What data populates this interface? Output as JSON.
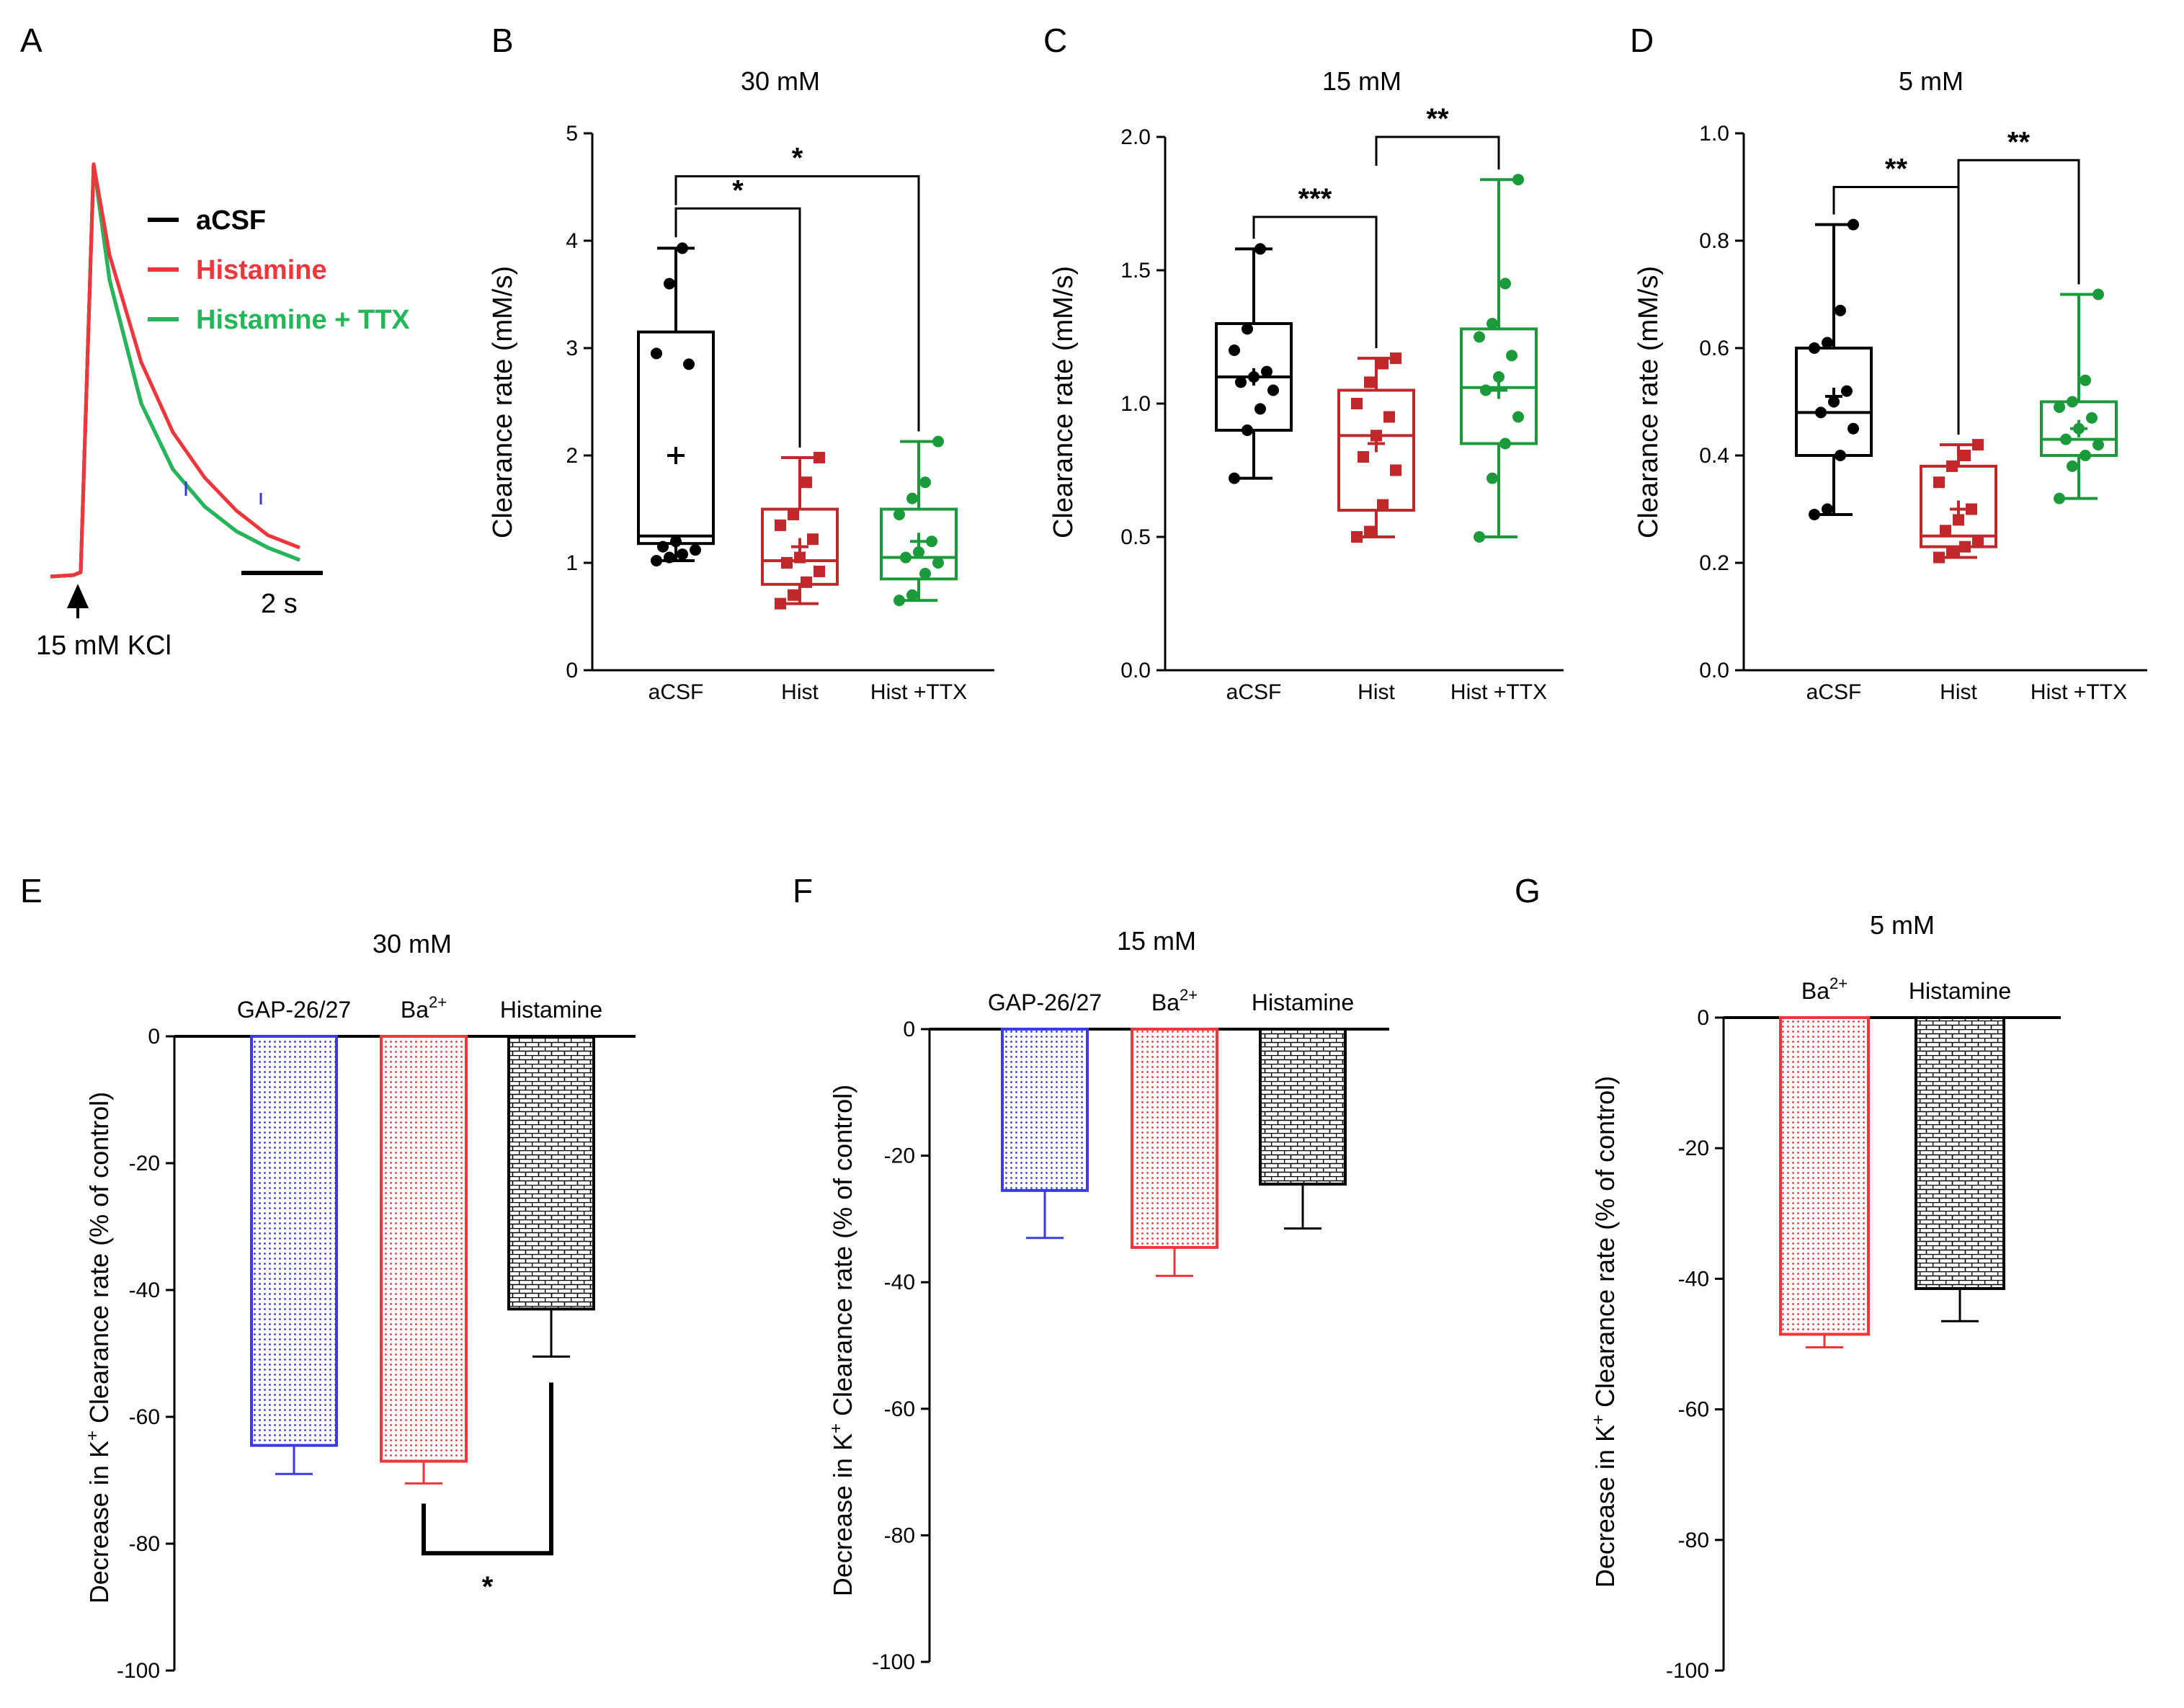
{
  "colors": {
    "black": "#000000",
    "red": "#c0282c",
    "green": "#1a9a3a",
    "blue": "#3a3ae8",
    "bright_red": "#f0363a",
    "bright_green": "#22b85a",
    "trace_blue": "#3a3ad0"
  },
  "chart_data": [
    {
      "panel": "A",
      "type": "line",
      "legend": [
        {
          "name": "aCSF",
          "color": "#000000"
        },
        {
          "name": "Histamine",
          "color": "#f0363a"
        },
        {
          "name": "Histamine + TTX",
          "color": "#22b85a"
        }
      ],
      "stimulus_label": "15 mM KCl",
      "scale_bar_label": "2 s",
      "series": [
        {
          "name": "aCSF",
          "t": [
            0,
            0.5,
            1,
            2,
            3,
            4,
            5,
            6,
            7
          ],
          "v": [
            0,
            1.0,
            0.72,
            0.42,
            0.26,
            0.17,
            0.11,
            0.07,
            0.04
          ]
        },
        {
          "name": "Histamine",
          "t": [
            0,
            0.5,
            1,
            2,
            3,
            4,
            5,
            6,
            7
          ],
          "v": [
            0,
            1.0,
            0.78,
            0.52,
            0.35,
            0.24,
            0.16,
            0.1,
            0.07
          ]
        },
        {
          "name": "Histamine + TTX",
          "t": [
            0,
            0.5,
            1,
            2,
            3,
            4,
            5,
            6,
            7
          ],
          "v": [
            0,
            1.0,
            0.72,
            0.42,
            0.26,
            0.17,
            0.11,
            0.07,
            0.04
          ]
        }
      ]
    },
    {
      "panel": "B",
      "type": "box",
      "title": "30 mM",
      "ylabel": "Clearance rate (mM/s)",
      "ylim": [
        0,
        5
      ],
      "yticks": [
        "0",
        "1",
        "2",
        "3",
        "4",
        "5"
      ],
      "categories": [
        "aCSF",
        "Hist",
        "Hist +TTX"
      ],
      "groups": [
        {
          "name": "aCSF",
          "min": 1.02,
          "q1": 1.18,
          "median": 1.25,
          "q3": 3.15,
          "max": 3.93,
          "mean": 2.0,
          "points": [
            1.02,
            1.05,
            1.08,
            1.12,
            1.15,
            1.2,
            2.85,
            2.95,
            3.6,
            3.93
          ]
        },
        {
          "name": "Hist",
          "min": 0.62,
          "q1": 0.8,
          "median": 1.02,
          "q3": 1.5,
          "max": 1.98,
          "mean": 1.15,
          "points": [
            0.62,
            0.7,
            0.82,
            0.92,
            1.0,
            1.05,
            1.22,
            1.35,
            1.45,
            1.75,
            1.98
          ]
        },
        {
          "name": "Hist +TTX",
          "min": 0.65,
          "q1": 0.85,
          "median": 1.05,
          "q3": 1.5,
          "max": 2.13,
          "mean": 1.2,
          "points": [
            0.65,
            0.7,
            0.9,
            1.0,
            1.05,
            1.1,
            1.2,
            1.45,
            1.6,
            1.75,
            2.13
          ]
        }
      ],
      "brackets": [
        {
          "from": 0,
          "to": 1,
          "level": 4.3,
          "label": "*"
        },
        {
          "from": 0,
          "to": 2,
          "level": 4.6,
          "label": "*"
        }
      ]
    },
    {
      "panel": "C",
      "type": "box",
      "title": "15 mM",
      "ylabel": "Clearance rate (mM/s)",
      "ylim": [
        0,
        2.0
      ],
      "yticks": [
        "0.0",
        "0.5",
        "1.0",
        "1.5",
        "2.0"
      ],
      "categories": [
        "aCSF",
        "Hist",
        "Hist +TTX"
      ],
      "groups": [
        {
          "name": "aCSF",
          "min": 0.72,
          "q1": 0.9,
          "median": 1.1,
          "q3": 1.3,
          "max": 1.58,
          "mean": 1.1,
          "points": [
            0.72,
            0.9,
            0.98,
            1.05,
            1.08,
            1.1,
            1.12,
            1.2,
            1.28,
            1.58
          ]
        },
        {
          "name": "Hist",
          "min": 0.5,
          "q1": 0.6,
          "median": 0.88,
          "q3": 1.05,
          "max": 1.17,
          "mean": 0.85,
          "points": [
            0.5,
            0.52,
            0.62,
            0.75,
            0.8,
            0.88,
            0.95,
            1.0,
            1.08,
            1.15,
            1.17
          ]
        },
        {
          "name": "Hist +TTX",
          "min": 0.5,
          "q1": 0.85,
          "median": 1.06,
          "q3": 1.28,
          "max": 1.84,
          "mean": 1.05,
          "points": [
            0.5,
            0.72,
            0.85,
            0.95,
            1.05,
            1.1,
            1.18,
            1.25,
            1.3,
            1.45,
            1.84
          ]
        }
      ],
      "brackets": [
        {
          "from": 0,
          "to": 1,
          "level": 1.7,
          "label": "***"
        },
        {
          "from": 1,
          "to": 2,
          "level": 2.0,
          "label": "**"
        }
      ]
    },
    {
      "panel": "D",
      "type": "box",
      "title": "5 mM",
      "ylabel": "Clearance rate (mM/s)",
      "ylim": [
        0,
        1.0
      ],
      "yticks": [
        "0.0",
        "0.2",
        "0.4",
        "0.6",
        "0.8",
        "1.0"
      ],
      "categories": [
        "aCSF",
        "Hist",
        "Hist +TTX"
      ],
      "groups": [
        {
          "name": "aCSF",
          "min": 0.29,
          "q1": 0.4,
          "median": 0.48,
          "q3": 0.6,
          "max": 0.83,
          "mean": 0.51,
          "points": [
            0.29,
            0.3,
            0.4,
            0.45,
            0.48,
            0.5,
            0.52,
            0.6,
            0.61,
            0.67,
            0.83
          ]
        },
        {
          "name": "Hist",
          "min": 0.21,
          "q1": 0.23,
          "median": 0.25,
          "q3": 0.38,
          "max": 0.42,
          "mean": 0.3,
          "points": [
            0.21,
            0.22,
            0.23,
            0.24,
            0.26,
            0.28,
            0.3,
            0.35,
            0.38,
            0.4,
            0.42
          ]
        },
        {
          "name": "Hist +TTX",
          "min": 0.32,
          "q1": 0.4,
          "median": 0.43,
          "q3": 0.5,
          "max": 0.7,
          "mean": 0.45,
          "points": [
            0.32,
            0.38,
            0.4,
            0.42,
            0.43,
            0.45,
            0.47,
            0.49,
            0.5,
            0.54,
            0.7
          ]
        }
      ],
      "brackets": [
        {
          "from": 0,
          "to": 1,
          "level": 0.9,
          "label": "**"
        },
        {
          "from": 1,
          "to": 2,
          "level": 0.95,
          "label": "**"
        }
      ]
    },
    {
      "panel": "E",
      "type": "bar",
      "title": "30 mM",
      "ylabel": "Decrease in K+ Clearance rate (% of control)",
      "ylabel_main": "Decrease in K",
      "ylabel_sup": "+",
      "ylabel_tail": " Clearance rate (% of control)",
      "ylim": [
        -100,
        0
      ],
      "yticks": [
        "0",
        "-20",
        "-40",
        "-60",
        "-80",
        "-100"
      ],
      "categories": [
        {
          "main": "GAP-26/27",
          "sup": ""
        },
        {
          "main": "Ba",
          "sup": "2+"
        },
        {
          "main": "Histamine",
          "sup": ""
        }
      ],
      "series": [
        {
          "name": "GAP-26/27",
          "value": -64.5,
          "error": 4.5,
          "pattern": "dots-blue"
        },
        {
          "name": "Ba2+",
          "value": -67,
          "error": 3.5,
          "pattern": "dots-red"
        },
        {
          "name": "Histamine",
          "value": -43,
          "error": 7.5,
          "pattern": "brick-black"
        }
      ],
      "brackets": [
        {
          "from": 1,
          "to": 2,
          "label": "*"
        }
      ]
    },
    {
      "panel": "F",
      "type": "bar",
      "title": "15 mM",
      "ylabel": "Decrease in K+ Clearance rate (% of control)",
      "ylabel_main": "Decrease in K",
      "ylabel_sup": "+",
      "ylabel_tail": " Clearance rate (% of control)",
      "ylim": [
        -100,
        0
      ],
      "yticks": [
        "0",
        "-20",
        "-40",
        "-60",
        "-80",
        "-100"
      ],
      "categories": [
        {
          "main": "GAP-26/27",
          "sup": ""
        },
        {
          "main": "Ba",
          "sup": "2+"
        },
        {
          "main": "Histamine",
          "sup": ""
        }
      ],
      "series": [
        {
          "name": "GAP-26/27",
          "value": -25.5,
          "error": 7.5,
          "pattern": "dots-blue"
        },
        {
          "name": "Ba2+",
          "value": -34.5,
          "error": 4.5,
          "pattern": "dots-red"
        },
        {
          "name": "Histamine",
          "value": -24.5,
          "error": 7,
          "pattern": "brick-black"
        }
      ]
    },
    {
      "panel": "G",
      "type": "bar",
      "title": "5 mM",
      "ylabel": "Decrease in K+ Clearance rate (% of control)",
      "ylabel_main": "Decrease in K",
      "ylabel_sup": "+",
      "ylabel_tail": " Clearance rate (% of control)",
      "ylim": [
        -100,
        0
      ],
      "yticks": [
        "0",
        "-20",
        "-40",
        "-60",
        "-80",
        "-100"
      ],
      "categories": [
        {
          "main": "Ba",
          "sup": "2+"
        },
        {
          "main": "Histamine",
          "sup": ""
        }
      ],
      "series": [
        {
          "name": "Ba2+",
          "value": -48.5,
          "error": 2,
          "pattern": "dots-red"
        },
        {
          "name": "Histamine",
          "value": -41.5,
          "error": 5,
          "pattern": "brick-black"
        }
      ]
    }
  ]
}
